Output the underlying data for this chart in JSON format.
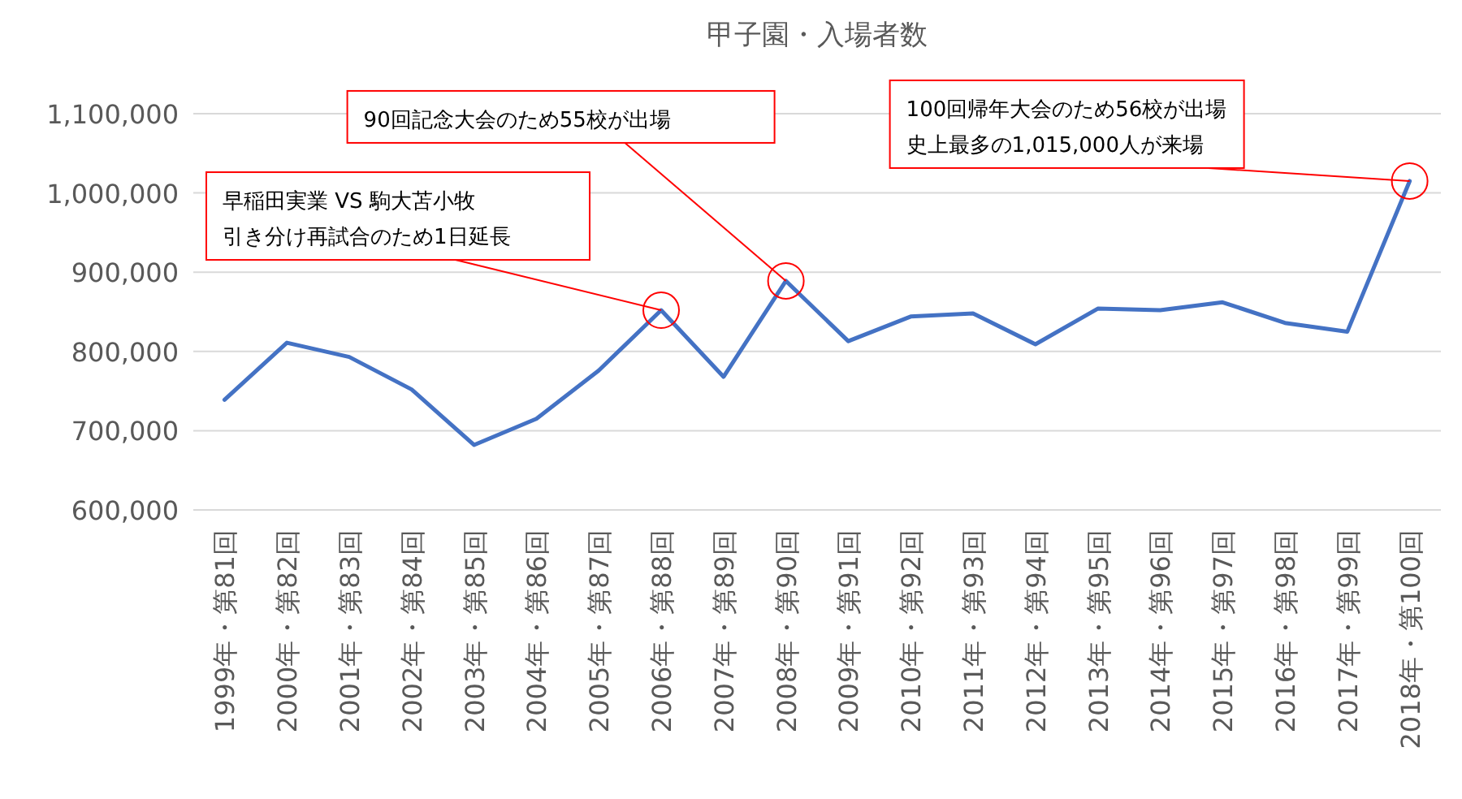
{
  "chart_data": {
    "type": "line",
    "title": "甲子園・入場者数",
    "categories": [
      "1999年・第81回",
      "2000年・第82回",
      "2001年・第83回",
      "2002年・第84回",
      "2003年・第85回",
      "2004年・第86回",
      "2005年・第87回",
      "2006年・第88回",
      "2007年・第89回",
      "2008年・第90回",
      "2009年・第91回",
      "2010年・第92回",
      "2011年・第93回",
      "2012年・第94回",
      "2013年・第95回",
      "2014年・第96回",
      "2015年・第97回",
      "2016年・第98回",
      "2017年・第99回",
      "2018年・第100回"
    ],
    "series": [
      {
        "color": "#4472c4",
        "values": [
          739000,
          811000,
          793000,
          752000,
          682000,
          715000,
          776000,
          852000,
          768000,
          889000,
          813000,
          844000,
          848000,
          809000,
          854000,
          852000,
          862000,
          836000,
          825000,
          1015000
        ]
      }
    ],
    "ylim": [
      600000,
      1100000
    ],
    "yticks": [
      {
        "value": 600000,
        "label": "600,000"
      },
      {
        "value": 700000,
        "label": "700,000"
      },
      {
        "value": 800000,
        "label": "800,000"
      },
      {
        "value": 900000,
        "label": "900,000"
      },
      {
        "value": 1000000,
        "label": "1,000,000"
      },
      {
        "value": 1100000,
        "label": "1,100,000"
      }
    ],
    "grid": "y",
    "annotations": [
      {
        "text": "早稲田実業 VS 駒大苫小牧引き分け再試合のため1日延長",
        "x": "2006年・第88回",
        "y": 852000
      },
      {
        "text": "90回記念大会のため55校が出場",
        "x": "2008年・第90回",
        "y": 889000
      },
      {
        "text": "100回帰年大会のため56校が出場史上最多の1,015,000人が来場",
        "x": "2018年・第100回",
        "y": 1015000
      }
    ]
  }
}
